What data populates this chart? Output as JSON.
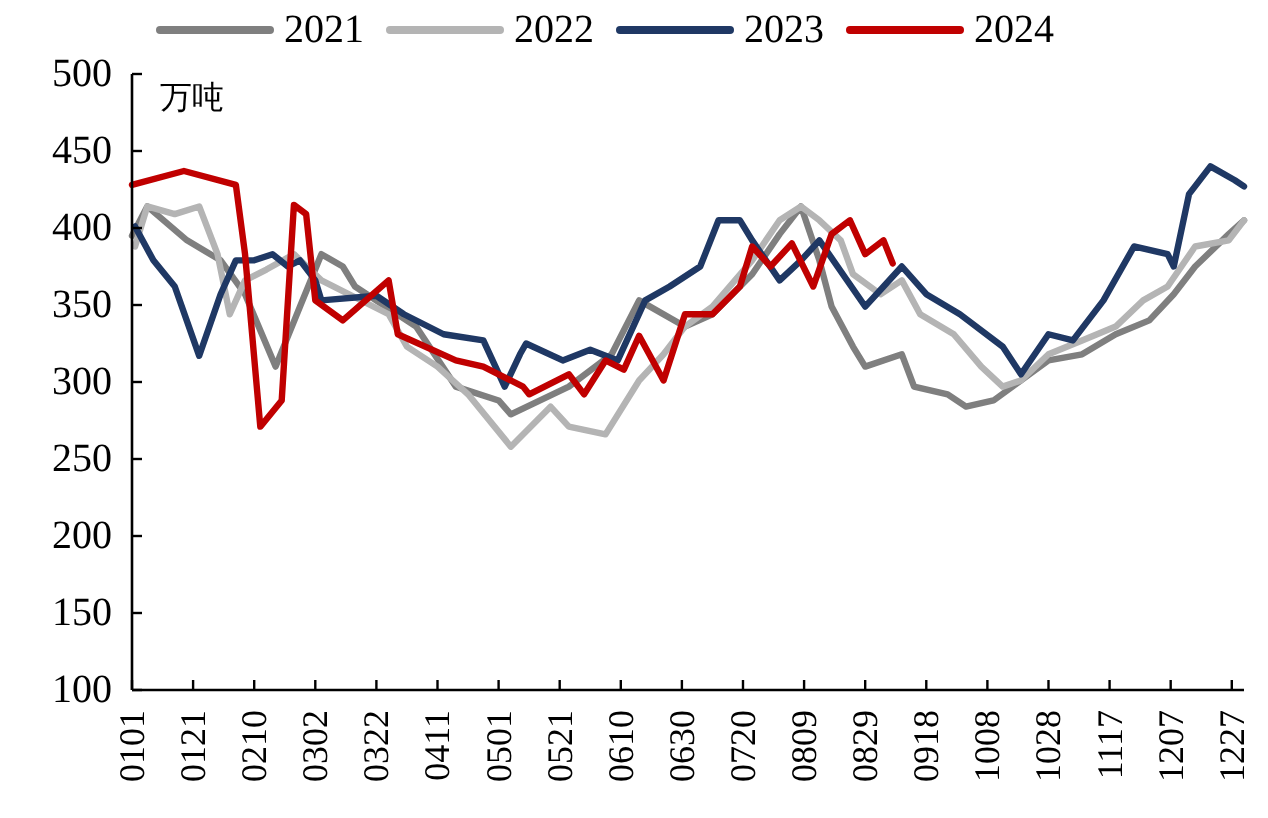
{
  "chart_data": {
    "type": "line",
    "ylabel": "万吨",
    "legend": "top",
    "grid": false,
    "line_style": "solid",
    "marker": "none",
    "xlim": [
      "--01-01",
      "--12-31"
    ],
    "ylim": [
      100,
      500
    ],
    "yticks": [
      100,
      150,
      200,
      250,
      300,
      350,
      400,
      450,
      500
    ],
    "xticks": [
      {
        "value": "--01-01",
        "label": "0101"
      },
      {
        "value": "--01-21",
        "label": "0121"
      },
      {
        "value": "--02-10",
        "label": "0210"
      },
      {
        "value": "--03-02",
        "label": "0302"
      },
      {
        "value": "--03-22",
        "label": "0322"
      },
      {
        "value": "--04-11",
        "label": "0411"
      },
      {
        "value": "--05-01",
        "label": "0501"
      },
      {
        "value": "--05-21",
        "label": "0521"
      },
      {
        "value": "--06-10",
        "label": "0610"
      },
      {
        "value": "--06-30",
        "label": "0630"
      },
      {
        "value": "--07-20",
        "label": "0720"
      },
      {
        "value": "--08-09",
        "label": "0809"
      },
      {
        "value": "--08-29",
        "label": "0829"
      },
      {
        "value": "--09-18",
        "label": "0918"
      },
      {
        "value": "--10-08",
        "label": "1008"
      },
      {
        "value": "--10-28",
        "label": "1028"
      },
      {
        "value": "--11-17",
        "label": "1117"
      },
      {
        "value": "--12-07",
        "label": "1207"
      },
      {
        "value": "--12-27",
        "label": "1227"
      }
    ],
    "series": [
      {
        "name": "2021",
        "color": "#7f7f7f",
        "x": [
          "--01-01",
          "--01-06",
          "--01-19",
          "--01-30",
          "--02-07",
          "--02-17",
          "--02-25",
          "--03-04",
          "--03-11",
          "--03-15",
          "--04-04",
          "--04-17",
          "--05-01",
          "--05-05",
          "--05-24",
          "--06-07",
          "--06-16",
          "--07-01",
          "--07-10",
          "--07-23",
          "--08-01",
          "--08-08",
          "--08-14",
          "--08-18",
          "--08-25",
          "--08-29",
          "--09-10",
          "--09-14",
          "--09-25",
          "--10-01",
          "--10-10",
          "--10-19",
          "--10-28",
          "--11-08",
          "--11-19",
          "--11-30",
          "--12-08",
          "--12-15",
          "--12-26",
          "--12-31"
        ],
        "values": [
          395,
          414,
          392,
          379,
          357,
          310,
          349,
          383,
          375,
          362,
          336,
          297,
          288,
          279,
          297,
          318,
          353,
          336,
          344,
          370,
          396,
          414,
          379,
          349,
          323,
          310,
          318,
          297,
          292,
          284,
          288,
          301,
          314,
          318,
          331,
          340,
          357,
          375,
          396,
          405
        ]
      },
      {
        "name": "2022",
        "color": "#b4b4b4",
        "x": [
          "--01-02",
          "--01-06",
          "--01-15",
          "--01-23",
          "--01-29",
          "--02-02",
          "--02-07",
          "--02-14",
          "--02-23",
          "--03-04",
          "--03-26",
          "--04-01",
          "--04-11",
          "--04-21",
          "--05-05",
          "--05-18",
          "--05-24",
          "--06-05",
          "--06-16",
          "--06-24",
          "--07-01",
          "--07-10",
          "--07-23",
          "--08-01",
          "--08-08",
          "--08-14",
          "--08-21",
          "--08-25",
          "--09-03",
          "--09-10",
          "--09-16",
          "--09-27",
          "--10-06",
          "--10-13",
          "--10-19",
          "--10-28",
          "--11-08",
          "--11-19",
          "--11-28",
          "--12-06",
          "--12-15",
          "--12-26",
          "--12-31"
        ],
        "values": [
          388,
          414,
          409,
          414,
          383,
          344,
          366,
          373,
          383,
          366,
          344,
          323,
          310,
          292,
          258,
          284,
          271,
          266,
          301,
          318,
          336,
          349,
          379,
          405,
          414,
          405,
          392,
          370,
          357,
          366,
          344,
          331,
          310,
          297,
          301,
          318,
          327,
          336,
          353,
          362,
          388,
          392,
          405
        ]
      },
      {
        "name": "2023",
        "color": "#1f3864",
        "x": [
          "--01-02",
          "--01-08",
          "--01-15",
          "--01-23",
          "--01-30",
          "--02-04",
          "--02-10",
          "--02-16",
          "--02-21",
          "--02-25",
          "--03-02",
          "--03-04",
          "--03-22",
          "--03-31",
          "--04-13",
          "--04-26",
          "--05-03",
          "--05-08",
          "--05-10",
          "--05-22",
          "--05-31",
          "--06-09",
          "--06-18",
          "--06-26",
          "--07-06",
          "--07-12",
          "--07-19",
          "--07-23",
          "--08-01",
          "--08-08",
          "--08-14",
          "--08-29",
          "--09-10",
          "--09-18",
          "--09-29",
          "--10-13",
          "--10-19",
          "--10-28",
          "--11-05",
          "--11-15",
          "--11-25",
          "--12-06",
          "--12-08",
          "--12-13",
          "--12-20",
          "--12-28",
          "--12-31"
        ],
        "values": [
          401,
          379,
          362,
          317,
          357,
          379,
          379,
          383,
          375,
          379,
          366,
          353,
          356,
          344,
          331,
          327,
          297,
          318,
          325,
          314,
          321,
          314,
          353,
          362,
          375,
          405,
          405,
          392,
          366,
          379,
          392,
          349,
          375,
          357,
          344,
          323,
          305,
          331,
          327,
          353,
          388,
          383,
          375,
          422,
          440,
          431,
          427
        ]
      },
      {
        "name": "2024",
        "color": "#c00000",
        "x": [
          "--01-01",
          "--01-18",
          "--02-04",
          "--02-07",
          "--02-12",
          "--02-19",
          "--02-23",
          "--02-27",
          "--03-02",
          "--03-11",
          "--03-26",
          "--03-29",
          "--04-17",
          "--04-26",
          "--05-09",
          "--05-11",
          "--05-24",
          "--05-29",
          "--06-05",
          "--06-11",
          "--06-16",
          "--06-24",
          "--07-01",
          "--07-10",
          "--07-19",
          "--07-23",
          "--07-29",
          "--08-05",
          "--08-12",
          "--08-18",
          "--08-24",
          "--08-29",
          "--09-04",
          "--09-07"
        ],
        "values": [
          428,
          437,
          428,
          383,
          271,
          288,
          415,
          409,
          353,
          340,
          366,
          331,
          314,
          310,
          297,
          292,
          305,
          292,
          314,
          308,
          330,
          301,
          344,
          344,
          362,
          388,
          375,
          390,
          362,
          396,
          405,
          383,
          392,
          377
        ]
      }
    ]
  }
}
